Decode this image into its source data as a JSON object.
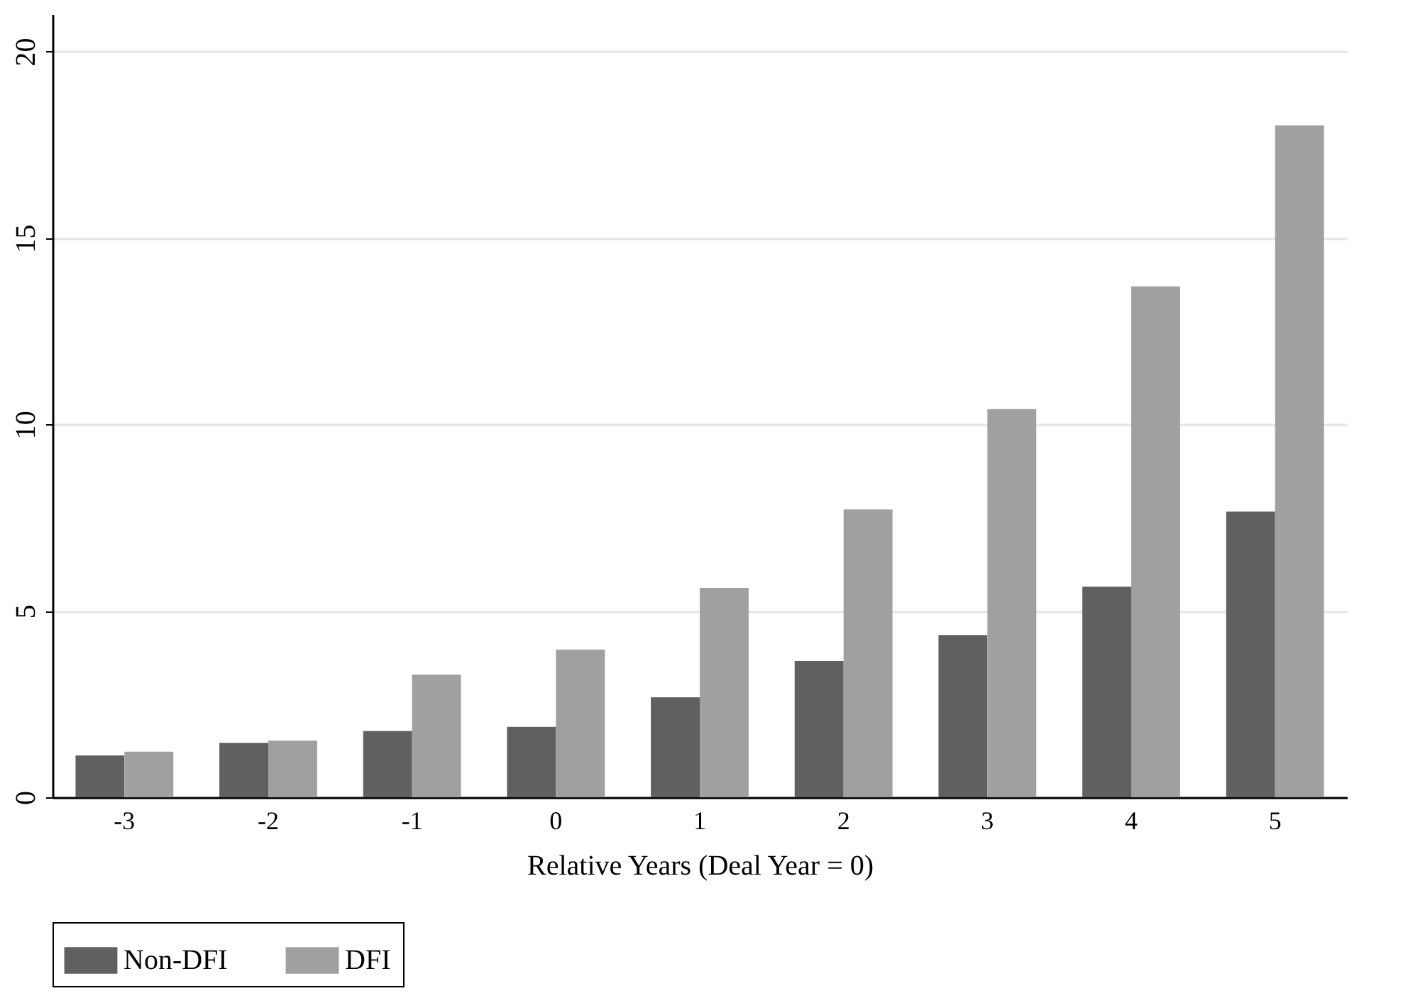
{
  "chart_data": {
    "type": "bar",
    "xlabel": "Relative Years (Deal Year = 0)",
    "categories": [
      "-3",
      "-2",
      "-1",
      "0",
      "1",
      "2",
      "3",
      "4",
      "5"
    ],
    "series": [
      {
        "name": "Non-DFI",
        "color": "#606060",
        "values": [
          1.12,
          1.46,
          1.78,
          1.89,
          2.68,
          3.65,
          4.35,
          5.65,
          7.66
        ]
      },
      {
        "name": "DFI",
        "color": "#a0a0a0",
        "values": [
          1.22,
          1.52,
          3.29,
          3.96,
          5.61,
          7.72,
          10.41,
          13.7,
          18.02
        ]
      }
    ],
    "ylim": [
      0,
      21
    ],
    "yticks": [
      0,
      5,
      10,
      15,
      20
    ],
    "grid": "y",
    "legend": "bottom"
  }
}
